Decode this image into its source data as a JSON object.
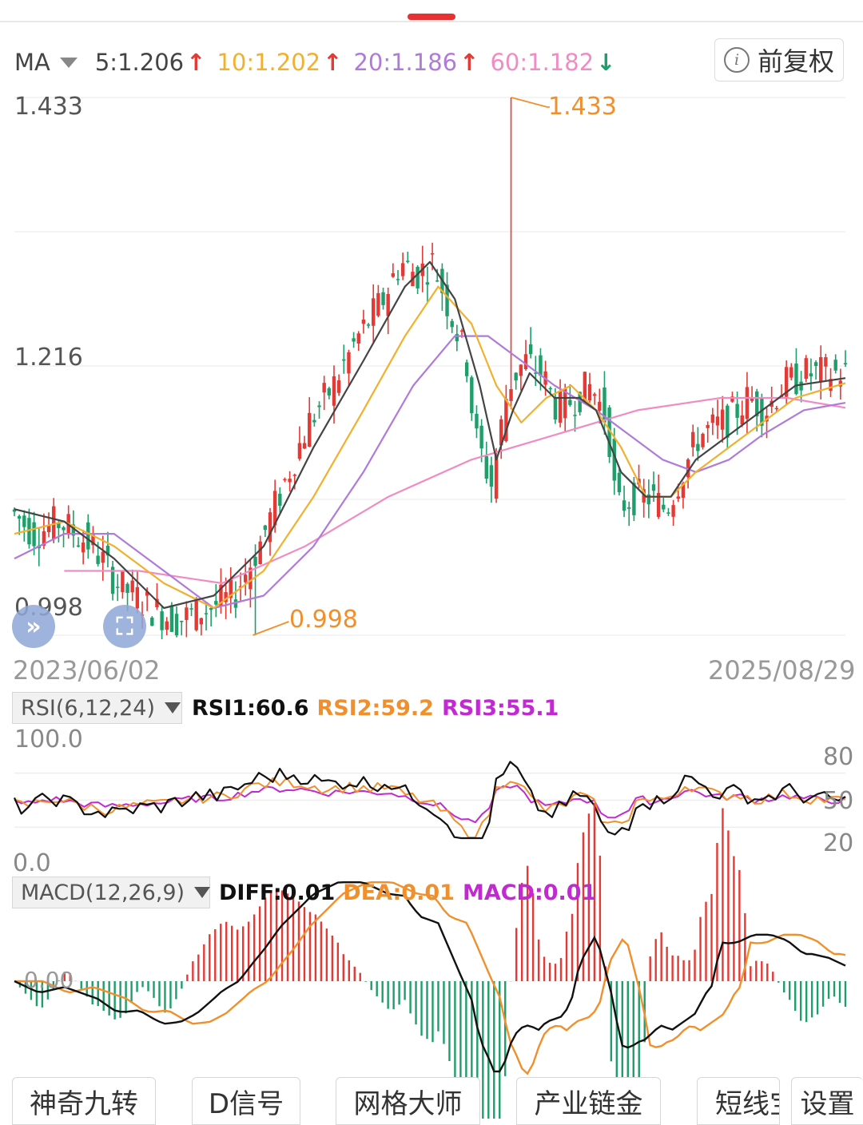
{
  "header": {
    "ma_label": "MA",
    "adjust_label": "前复权",
    "ma_values": [
      {
        "text": "5:1.206",
        "dir": "up",
        "color": "#444444"
      },
      {
        "text": "10:1.202",
        "dir": "up",
        "color": "#f2b02f"
      },
      {
        "text": "20:1.186",
        "dir": "up",
        "color": "#b07bd8"
      },
      {
        "text": "60:1.182",
        "dir": "down",
        "color": "#f08cc4"
      }
    ]
  },
  "main_chart": {
    "y_labels": [
      "1.433",
      "1.216",
      "0.998"
    ],
    "high_label": "1.433",
    "low_label": "0.998",
    "start_date": "2023/06/02",
    "end_date": "2025/08/29"
  },
  "rsi": {
    "name": "RSI(6,12,24)",
    "rsi1": "RSI1:60.6",
    "rsi2": "RSI2:59.2",
    "rsi3": "RSI3:55.1",
    "top": "100.0",
    "bottom": "0.0",
    "levels": [
      "80",
      "50",
      "20"
    ]
  },
  "macd": {
    "name": "MACD(12,26,9)",
    "diff": "DIFF:0.01",
    "dea": "DEA:0.01",
    "macd": "MACD:0.01",
    "zero": "0.00"
  },
  "tabs": [
    "神奇九转",
    "D信号",
    "网格大师",
    "产业链金",
    "短线宝",
    "设置"
  ],
  "colors": {
    "up": "#e53935",
    "down": "#1e9e6a",
    "ma5": "#444444",
    "ma10": "#f2b02f",
    "ma20": "#b07bd8",
    "ma60": "#f08cc4",
    "rsi1": "#111111",
    "rsi2": "#f0902c",
    "rsi3": "#c02ad0",
    "diff": "#111111",
    "dea": "#f0902c"
  },
  "icons": [
    "chevron-down-icon",
    "info-icon",
    "double-chevron-right-icon",
    "fullscreen-icon",
    "up-arrow-icon",
    "down-arrow-icon"
  ],
  "chart_data": {
    "type": "candlestick",
    "x_range": [
      "2023/06/02",
      "2025/08/29"
    ],
    "ylim": [
      0.998,
      1.433
    ],
    "price_path": [
      [
        0,
        1.1
      ],
      [
        0.03,
        1.08
      ],
      [
        0.06,
        1.09
      ],
      [
        0.1,
        1.07
      ],
      [
        0.13,
        1.04
      ],
      [
        0.17,
        1.02
      ],
      [
        0.2,
        1.01
      ],
      [
        0.24,
        1.02
      ],
      [
        0.27,
        1.03
      ],
      [
        0.3,
        1.07
      ],
      [
        0.33,
        1.12
      ],
      [
        0.36,
        1.17
      ],
      [
        0.39,
        1.2
      ],
      [
        0.42,
        1.24
      ],
      [
        0.45,
        1.27
      ],
      [
        0.47,
        1.3
      ],
      [
        0.49,
        1.29
      ],
      [
        0.51,
        1.3
      ],
      [
        0.53,
        1.26
      ],
      [
        0.55,
        1.22
      ],
      [
        0.56,
        1.16
      ],
      [
        0.58,
        1.12
      ],
      [
        0.6,
        1.2
      ],
      [
        0.62,
        1.22
      ],
      [
        0.64,
        1.21
      ],
      [
        0.66,
        1.18
      ],
      [
        0.68,
        1.19
      ],
      [
        0.7,
        1.2
      ],
      [
        0.72,
        1.17
      ],
      [
        0.73,
        1.1
      ],
      [
        0.75,
        1.11
      ],
      [
        0.77,
        1.11
      ],
      [
        0.79,
        1.1
      ],
      [
        0.81,
        1.13
      ],
      [
        0.83,
        1.16
      ],
      [
        0.86,
        1.17
      ],
      [
        0.89,
        1.19
      ],
      [
        0.91,
        1.18
      ],
      [
        0.93,
        1.2
      ],
      [
        0.96,
        1.21
      ],
      [
        1.0,
        1.21
      ]
    ],
    "ma5": [
      [
        0,
        1.1
      ],
      [
        0.06,
        1.09
      ],
      [
        0.12,
        1.06
      ],
      [
        0.18,
        1.02
      ],
      [
        0.24,
        1.03
      ],
      [
        0.3,
        1.07
      ],
      [
        0.36,
        1.15
      ],
      [
        0.42,
        1.22
      ],
      [
        0.47,
        1.28
      ],
      [
        0.5,
        1.3
      ],
      [
        0.53,
        1.27
      ],
      [
        0.56,
        1.2
      ],
      [
        0.58,
        1.14
      ],
      [
        0.6,
        1.18
      ],
      [
        0.62,
        1.21
      ],
      [
        0.65,
        1.19
      ],
      [
        0.68,
        1.19
      ],
      [
        0.7,
        1.18
      ],
      [
        0.73,
        1.13
      ],
      [
        0.76,
        1.11
      ],
      [
        0.79,
        1.11
      ],
      [
        0.82,
        1.14
      ],
      [
        0.86,
        1.16
      ],
      [
        0.9,
        1.18
      ],
      [
        0.94,
        1.2
      ],
      [
        1.0,
        1.206
      ]
    ],
    "ma10": [
      [
        0,
        1.08
      ],
      [
        0.06,
        1.09
      ],
      [
        0.12,
        1.07
      ],
      [
        0.18,
        1.04
      ],
      [
        0.24,
        1.02
      ],
      [
        0.3,
        1.05
      ],
      [
        0.36,
        1.11
      ],
      [
        0.42,
        1.18
      ],
      [
        0.47,
        1.24
      ],
      [
        0.51,
        1.28
      ],
      [
        0.55,
        1.25
      ],
      [
        0.58,
        1.2
      ],
      [
        0.61,
        1.17
      ],
      [
        0.64,
        1.19
      ],
      [
        0.67,
        1.2
      ],
      [
        0.7,
        1.18
      ],
      [
        0.73,
        1.15
      ],
      [
        0.76,
        1.11
      ],
      [
        0.79,
        1.11
      ],
      [
        0.82,
        1.13
      ],
      [
        0.86,
        1.15
      ],
      [
        0.9,
        1.17
      ],
      [
        0.94,
        1.19
      ],
      [
        1.0,
        1.202
      ]
    ],
    "ma20": [
      [
        0,
        1.06
      ],
      [
        0.06,
        1.08
      ],
      [
        0.12,
        1.08
      ],
      [
        0.18,
        1.05
      ],
      [
        0.24,
        1.02
      ],
      [
        0.3,
        1.03
      ],
      [
        0.36,
        1.07
      ],
      [
        0.42,
        1.13
      ],
      [
        0.48,
        1.2
      ],
      [
        0.53,
        1.24
      ],
      [
        0.57,
        1.24
      ],
      [
        0.61,
        1.22
      ],
      [
        0.65,
        1.2
      ],
      [
        0.7,
        1.18
      ],
      [
        0.74,
        1.16
      ],
      [
        0.78,
        1.14
      ],
      [
        0.82,
        1.13
      ],
      [
        0.86,
        1.14
      ],
      [
        0.9,
        1.16
      ],
      [
        0.95,
        1.18
      ],
      [
        1.0,
        1.186
      ]
    ],
    "ma60": [
      [
        0.06,
        1.05
      ],
      [
        0.15,
        1.05
      ],
      [
        0.25,
        1.04
      ],
      [
        0.35,
        1.07
      ],
      [
        0.45,
        1.11
      ],
      [
        0.55,
        1.14
      ],
      [
        0.65,
        1.16
      ],
      [
        0.75,
        1.18
      ],
      [
        0.85,
        1.19
      ],
      [
        0.93,
        1.19
      ],
      [
        1.0,
        1.182
      ]
    ],
    "rsi_latest": {
      "rsi1": 60.6,
      "rsi2": 59.2,
      "rsi3": 55.1
    },
    "macd_latest": {
      "diff": 0.01,
      "dea": 0.01,
      "macd": 0.01
    }
  }
}
